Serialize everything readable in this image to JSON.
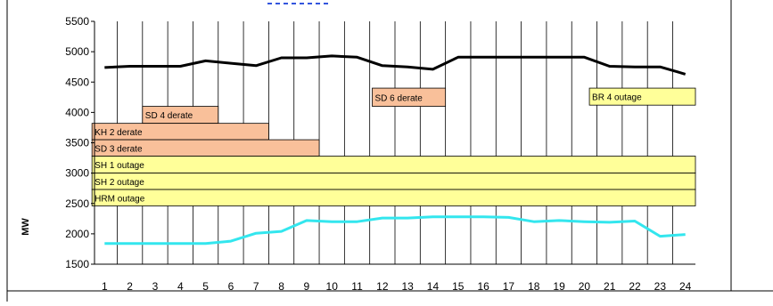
{
  "chart_data": {
    "type": "line",
    "ylabel": "MW",
    "xlabel": "",
    "ylim": [
      1500,
      5500
    ],
    "yticks": [
      1500,
      2000,
      2500,
      3000,
      3500,
      4000,
      4500,
      5000,
      5500
    ],
    "x": [
      "1",
      "2",
      "3",
      "4",
      "5",
      "6",
      "7",
      "8",
      "9",
      "10",
      "11",
      "12",
      "13",
      "14",
      "15",
      "16",
      "17",
      "18",
      "19",
      "20",
      "21",
      "22",
      "23",
      "24"
    ],
    "grid": "vertical",
    "series": [
      {
        "color": "#000000",
        "values": [
          4740,
          4760,
          4760,
          4760,
          4850,
          4810,
          4770,
          4900,
          4900,
          4930,
          4910,
          4770,
          4750,
          4710,
          4910,
          4910,
          4910,
          4910,
          4910,
          4910,
          4760,
          4750,
          4750,
          4630
        ]
      },
      {
        "color": "#33e6ee",
        "values": [
          1840,
          1840,
          1840,
          1840,
          1840,
          1880,
          2010,
          2040,
          2220,
          2200,
          2200,
          2260,
          2260,
          2280,
          2280,
          2280,
          2270,
          2200,
          2220,
          2200,
          2190,
          2210,
          1960,
          1990
        ]
      }
    ],
    "annotations": [
      {
        "label": "SD 4 derate",
        "start": 2.5,
        "end": 5.5,
        "y_top": 4100,
        "y_bottom": 3820,
        "color": "#f9c09a"
      },
      {
        "label": "KH 2 derate",
        "start": 0.5,
        "end": 7.5,
        "y_top": 3820,
        "y_bottom": 3550,
        "color": "#f9c09a"
      },
      {
        "label": "SD 3 derate",
        "start": 0.5,
        "end": 9.5,
        "y_top": 3550,
        "y_bottom": 3280,
        "color": "#f9c09a"
      },
      {
        "label": "SD 6 derate",
        "start": 11.6,
        "end": 14.5,
        "y_top": 4400,
        "y_bottom": 4100,
        "color": "#f9c09a"
      },
      {
        "label": "BR 4 outage",
        "start": 20.2,
        "end": 24.7,
        "y_top": 4400,
        "y_bottom": 4120,
        "color": "#ffff99"
      },
      {
        "label": "SH 1 outage",
        "start": 0.5,
        "end": 24.7,
        "y_top": 3280,
        "y_bottom": 3000,
        "color": "#ffff99"
      },
      {
        "label": "SH 2 outage",
        "start": 0.5,
        "end": 24.7,
        "y_top": 3000,
        "y_bottom": 2730,
        "color": "#ffff99"
      },
      {
        "label": "HRM outage",
        "start": 0.5,
        "end": 24.7,
        "y_top": 2730,
        "y_bottom": 2460,
        "color": "#ffff99"
      }
    ]
  }
}
